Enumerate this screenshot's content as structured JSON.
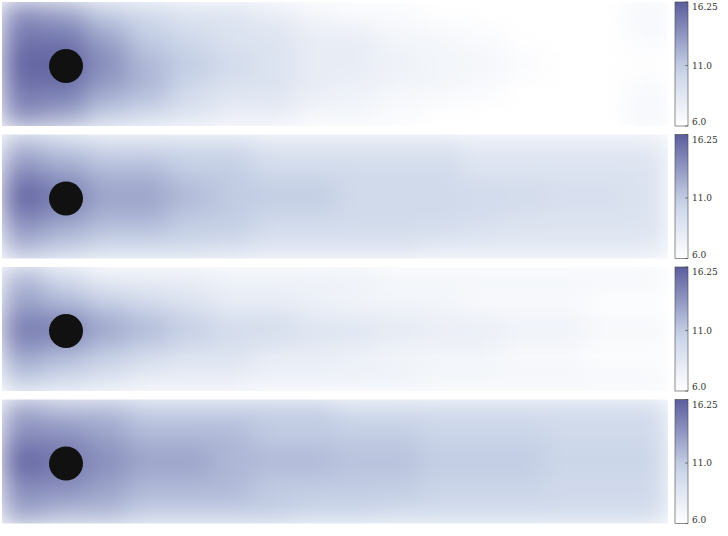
{
  "chart_data": [
    {
      "type": "heatmap",
      "color": "#5b5d9d",
      "tick_labels": false,
      "colorbar_lim": [
        6,
        16.25
      ],
      "colorbar_ticks": [
        {
          "value": 6,
          "label": "6.0"
        },
        {
          "value": 11,
          "label": "11.0"
        },
        16.25
      ],
      "cells": [
        [
          14,
          13,
          11,
          10,
          9,
          9,
          8,
          7,
          6.5,
          6.5,
          6,
          6,
          6,
          6,
          6,
          7
        ],
        [
          15,
          15,
          13,
          11,
          10,
          9,
          9,
          8,
          8,
          7,
          7,
          6.5,
          6,
          6,
          6,
          6.5
        ],
        [
          16,
          16,
          14,
          12,
          11,
          10,
          9,
          8,
          8,
          7.5,
          7,
          7,
          6.5,
          6,
          6,
          6
        ],
        [
          15,
          15,
          13,
          12,
          10,
          9,
          9,
          8,
          7.5,
          7,
          7,
          6.5,
          6,
          6,
          6,
          6.5
        ],
        [
          14,
          13,
          11,
          10,
          9,
          8,
          8,
          7,
          7,
          6.5,
          6,
          6,
          6,
          6,
          6,
          7
        ]
      ]
    },
    {
      "type": "heatmap",
      "color": "#5b5d9d",
      "tick_labels": false,
      "colorbar_lim": [
        6,
        16.25
      ],
      "colorbar_ticks": [
        {
          "value": 6,
          "label": "6.0"
        },
        {
          "value": 11,
          "label": "11.0"
        },
        16.25
      ],
      "cells": [
        [
          12,
          11,
          10,
          10,
          10,
          10,
          9,
          9,
          9,
          9,
          9,
          8.5,
          8.5,
          8.5,
          8.5,
          8.5
        ],
        [
          14,
          13,
          12,
          12,
          11,
          11,
          10,
          10,
          10,
          10,
          10,
          9,
          9,
          9,
          9,
          9
        ],
        [
          16,
          15,
          13,
          13,
          12,
          11,
          11,
          11,
          10,
          10,
          10,
          10,
          10,
          9.5,
          9.5,
          9
        ],
        [
          14,
          13,
          12,
          12,
          11,
          11,
          10,
          10,
          10,
          10,
          10,
          9.5,
          9,
          9,
          9,
          9
        ],
        [
          12,
          11,
          10,
          10,
          10,
          9.5,
          9,
          9,
          9,
          9,
          8.5,
          8.5,
          8.5,
          8.5,
          8.5,
          8.5
        ]
      ]
    },
    {
      "type": "heatmap",
      "color": "#5b5d9d",
      "tick_labels": false,
      "colorbar_lim": [
        6,
        16.25
      ],
      "colorbar_ticks": [
        {
          "value": 6,
          "label": "6.0"
        },
        {
          "value": 11,
          "label": "11.0"
        },
        16.25
      ],
      "cells": [
        [
          12,
          10,
          8,
          8,
          8,
          7.5,
          7.5,
          7.5,
          7.5,
          7,
          7,
          7,
          7,
          7,
          7,
          7
        ],
        [
          13,
          12,
          11,
          10,
          9,
          8,
          8,
          7.5,
          7,
          7,
          7,
          6.5,
          6.5,
          6.5,
          6,
          6
        ],
        [
          15,
          15,
          13,
          12,
          11,
          10,
          10,
          9,
          9,
          8.5,
          8,
          8,
          7.5,
          7.5,
          7,
          7
        ],
        [
          13,
          12,
          11,
          10,
          9,
          9,
          8,
          8,
          7.5,
          7,
          7,
          7,
          6.5,
          6.5,
          6,
          6
        ],
        [
          11,
          10,
          9,
          8,
          8,
          8,
          7.5,
          7.5,
          7.5,
          7.5,
          7,
          7,
          7,
          7,
          7,
          7
        ]
      ]
    },
    {
      "type": "heatmap",
      "color": "#5b5d9d",
      "tick_labels": false,
      "colorbar_lim": [
        6,
        16.25
      ],
      "colorbar_ticks": [
        {
          "value": 6,
          "label": "6.0"
        },
        {
          "value": 11,
          "label": "11.0"
        },
        16.25
      ],
      "cells": [
        [
          13,
          12,
          12,
          11,
          11,
          11,
          11,
          11,
          10,
          10,
          10,
          10,
          10,
          10,
          10,
          10
        ],
        [
          14,
          14,
          13,
          12,
          12,
          12,
          11,
          11,
          11,
          11,
          10.5,
          10.5,
          10.5,
          10,
          10,
          10
        ],
        [
          16,
          15,
          14,
          13,
          13,
          12,
          12,
          12,
          11.5,
          11.5,
          11,
          11,
          11,
          10.5,
          10.5,
          10.5
        ],
        [
          14,
          14,
          13,
          12,
          12,
          12,
          11,
          11,
          11,
          11,
          10.5,
          10.5,
          10.5,
          10,
          10,
          10
        ],
        [
          13,
          12,
          12,
          11,
          11,
          11,
          11,
          10.5,
          10.5,
          10,
          10,
          10,
          10,
          10,
          10,
          10
        ]
      ]
    }
  ]
}
